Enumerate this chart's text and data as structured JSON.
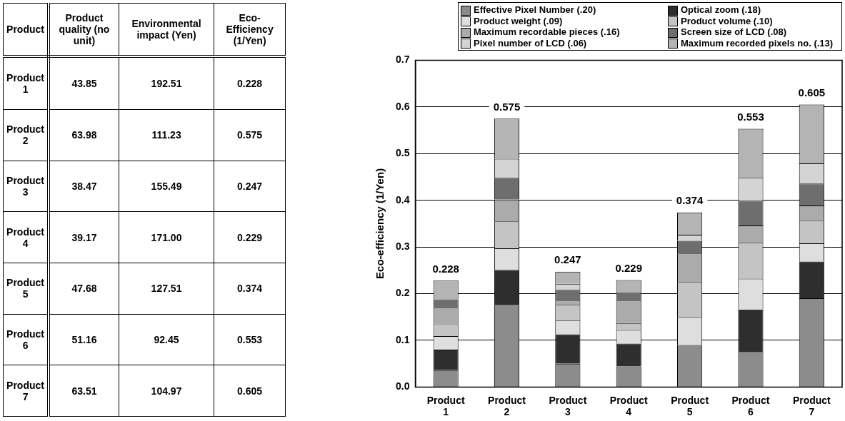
{
  "chart_data": [
    {
      "type": "heatmap",
      "ylabel": "Product",
      "categories": [
        "Product quality (no unit)",
        "Environmental impact (Yen)",
        "Eco-Efficiency (1/Yen)"
      ],
      "y_categories": [
        "Product 1",
        "Product 2",
        "Product 3",
        "Product 4",
        "Product 5",
        "Product 6",
        "Product 7"
      ],
      "cells": [
        [
          43.85,
          192.51,
          0.228
        ],
        [
          63.98,
          111.23,
          0.575
        ],
        [
          38.47,
          155.49,
          0.247
        ],
        [
          39.17,
          171.0,
          0.229
        ],
        [
          47.68,
          127.51,
          0.374
        ],
        [
          51.16,
          92.45,
          0.553
        ],
        [
          63.51,
          104.97,
          0.605
        ]
      ],
      "cell_labels": [
        [
          "43.85",
          "192.51",
          "0.228"
        ],
        [
          "63.98",
          "111.23",
          "0.575"
        ],
        [
          "38.47",
          "155.49",
          "0.247"
        ],
        [
          "39.17",
          "171.00",
          "0.229"
        ],
        [
          "47.68",
          "127.51",
          "0.374"
        ],
        [
          "51.16",
          "92.45",
          "0.553"
        ],
        [
          "63.51",
          "104.97",
          "0.605"
        ]
      ]
    },
    {
      "type": "bar",
      "stacked": true,
      "ylabel": "Eco-efficiency (1/Yen)",
      "categories": [
        "Product 1",
        "Product 2",
        "Product 3",
        "Product 4",
        "Product 5",
        "Product 6",
        "Product 7"
      ],
      "series": [
        {
          "name": "Effective Pixel Number (.20)",
          "color": "#8c8c8c",
          "values": [
            0.036,
            0.176,
            0.05,
            0.044,
            0.09,
            0.075,
            0.19
          ]
        },
        {
          "name": "Optical zoom (.18)",
          "color": "#2e2e2e",
          "values": [
            0.044,
            0.075,
            0.063,
            0.049,
            0,
            0.091,
            0.079
          ]
        },
        {
          "name": "Product weight (.09)",
          "color": "#dedede",
          "values": [
            0.029,
            0.046,
            0.03,
            0.029,
            0.06,
            0.066,
            0.039
          ]
        },
        {
          "name": "Product volume (.10)",
          "color": "#c4c4c4",
          "values": [
            0.027,
            0.058,
            0.033,
            0.015,
            0.075,
            0.077,
            0.049
          ]
        },
        {
          "name": "Maximum recordable pieces (.16)",
          "color": "#ababab",
          "values": [
            0.034,
            0.047,
            0.009,
            0.048,
            0.061,
            0.037,
            0.032
          ]
        },
        {
          "name": "Screen size of LCD (.08)",
          "color": "#6e6e6e",
          "values": [
            0.018,
            0.046,
            0.023,
            0.018,
            0.027,
            0.053,
            0.047
          ]
        },
        {
          "name": "Pixel number of LCD (.06)",
          "color": "#d4d4d4",
          "values": [
            0,
            0.041,
            0.013,
            0,
            0.013,
            0.049,
            0.043
          ]
        },
        {
          "name": "Maximum recorded pixels no. (.13)",
          "color": "#b4b4b4",
          "values": [
            0.04,
            0.086,
            0.026,
            0.026,
            0.048,
            0.105,
            0.126
          ]
        }
      ],
      "totals": [
        "0.228",
        "0.575",
        "0.247",
        "0.229",
        "0.374",
        "0.553",
        "0.605"
      ],
      "ylim": [
        0,
        0.7
      ],
      "yticks": [
        {
          "value": 0,
          "label": "0.0"
        },
        0.1,
        0.2,
        0.3,
        0.4,
        0.5,
        0.6,
        0.7
      ],
      "grid": "y",
      "legend": "top"
    }
  ]
}
